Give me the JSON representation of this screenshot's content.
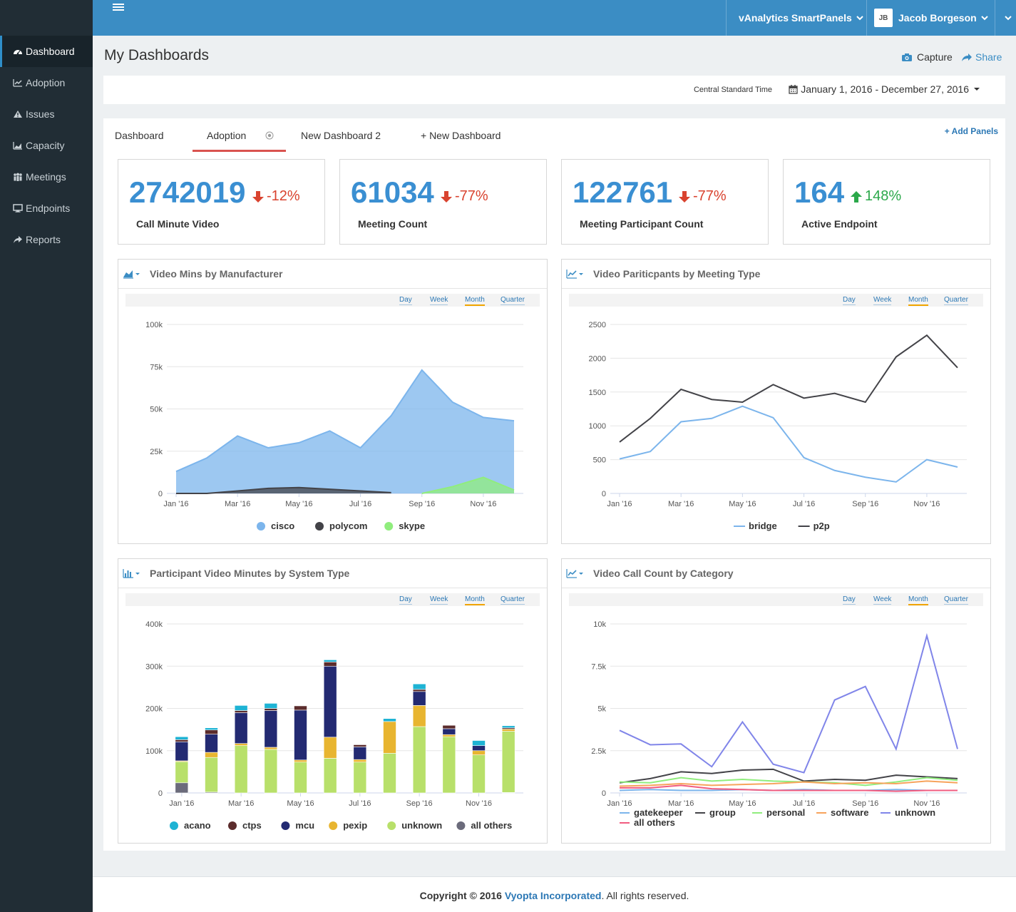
{
  "sidebar": {
    "items": [
      {
        "label": "Dashboard",
        "icon": "dashboard-icon",
        "active": true
      },
      {
        "label": "Adoption",
        "icon": "line-chart-icon"
      },
      {
        "label": "Issues",
        "icon": "warning-icon"
      },
      {
        "label": "Capacity",
        "icon": "area-chart-icon"
      },
      {
        "label": "Meetings",
        "icon": "users-icon"
      },
      {
        "label": "Endpoints",
        "icon": "desktop-icon"
      },
      {
        "label": "Reports",
        "icon": "share-icon"
      }
    ]
  },
  "header": {
    "product_menu": "vAnalytics SmartPanels",
    "user_initials": "JB",
    "user_name": "Jacob Borgeson",
    "brand_color": "#3b8dc4"
  },
  "page": {
    "title": "My Dashboards",
    "capture_label": "Capture",
    "share_label": "Share"
  },
  "datebar": {
    "timezone": "Central Standard Time",
    "range": "January 1, 2016 - December 27, 2016"
  },
  "tabs": [
    {
      "label": "Dashboard"
    },
    {
      "label": "Adoption",
      "active": true
    },
    {
      "label": "New Dashboard 2"
    },
    {
      "label": "+ New Dashboard"
    }
  ],
  "add_panels_label": "+ Add Panels",
  "kpis": [
    {
      "value": "2742019",
      "change": "-12%",
      "direction": "down",
      "label": "Call Minute Video"
    },
    {
      "value": "61034",
      "change": "-77%",
      "direction": "down",
      "label": "Meeting Count"
    },
    {
      "value": "122761",
      "change": "-77%",
      "direction": "down",
      "label": "Meeting Participant Count"
    },
    {
      "value": "164",
      "change": "148%",
      "direction": "up",
      "label": "Active Endpoint"
    }
  ],
  "periods": [
    "Day",
    "Week",
    "Month",
    "Quarter"
  ],
  "selected_period": "Month",
  "colors": {
    "kpi_number": "#3a8fd2",
    "down": "#d9432f",
    "up": "#2ba84a"
  },
  "chart_data": [
    {
      "type": "area",
      "title": "Video Mins by Manufacturer",
      "x": [
        "Jan '16",
        "Feb '16",
        "Mar '16",
        "Apr '16",
        "May '16",
        "Jun '16",
        "Jul '16",
        "Aug '16",
        "Sep '16",
        "Oct '16",
        "Nov '16",
        "Dec '16"
      ],
      "x_ticks": [
        "Jan '16",
        "Mar '16",
        "May '16",
        "Jul '16",
        "Sep '16",
        "Nov '16"
      ],
      "y_ticks": [
        "0",
        "25k",
        "50k",
        "75k",
        "100k"
      ],
      "ylim": [
        0,
        100000
      ],
      "series": [
        {
          "name": "cisco",
          "color": "#7cb5ec",
          "values": [
            13000,
            21000,
            34000,
            27000,
            30000,
            37000,
            27000,
            46000,
            73000,
            54000,
            45000,
            43000
          ]
        },
        {
          "name": "polycom",
          "color": "#434348",
          "values": [
            0,
            0,
            1500,
            3000,
            3500,
            2500,
            1500,
            500,
            null,
            null,
            null,
            null
          ]
        },
        {
          "name": "skype",
          "color": "#90ed7d",
          "values": [
            null,
            null,
            null,
            null,
            null,
            null,
            null,
            null,
            0,
            4000,
            9500,
            2000
          ]
        }
      ],
      "legend": "bottom"
    },
    {
      "type": "line",
      "title": "Video Pariticpants by Meeting Type",
      "x": [
        "Jan '16",
        "Feb '16",
        "Mar '16",
        "Apr '16",
        "May '16",
        "Jun '16",
        "Jul '16",
        "Aug '16",
        "Sep '16",
        "Oct '16",
        "Nov '16",
        "Dec '16"
      ],
      "x_ticks": [
        "Jan '16",
        "Mar '16",
        "May '16",
        "Jul '16",
        "Sep '16",
        "Nov '16"
      ],
      "y_ticks": [
        "0",
        "500",
        "1000",
        "1500",
        "2000",
        "2500"
      ],
      "ylim": [
        0,
        2500
      ],
      "series": [
        {
          "name": "bridge",
          "color": "#7cb5ec",
          "values": [
            510,
            620,
            1060,
            1110,
            1290,
            1120,
            530,
            340,
            240,
            170,
            500,
            390
          ]
        },
        {
          "name": "p2p",
          "color": "#434348",
          "values": [
            760,
            1110,
            1540,
            1390,
            1350,
            1610,
            1410,
            1480,
            1350,
            2020,
            2340,
            1860
          ]
        }
      ],
      "legend": "bottom"
    },
    {
      "type": "bar",
      "stacked": true,
      "title": "Participant Video Minutes by System Type",
      "x": [
        "Jan '16",
        "Feb '16",
        "Mar '16",
        "Apr '16",
        "May '16",
        "Jun '16",
        "Jul '16",
        "Aug '16",
        "Sep '16",
        "Oct '16",
        "Nov '16",
        "Dec '16"
      ],
      "x_ticks": [
        "Jan '16",
        "Mar '16",
        "May '16",
        "Jul '16",
        "Sep '16",
        "Nov '16"
      ],
      "y_ticks": [
        "0",
        "100k",
        "200k",
        "300k",
        "400k"
      ],
      "ylim": [
        0,
        400000
      ],
      "series": [
        {
          "name": "all others",
          "color": "#6b6b7b",
          "values": [
            24000,
            2000,
            0,
            0,
            0,
            0,
            0,
            0,
            0,
            0,
            0,
            1000
          ]
        },
        {
          "name": "unknown",
          "color": "#b8e06a",
          "values": [
            50000,
            82000,
            112000,
            103000,
            73000,
            82000,
            73000,
            94000,
            157000,
            133000,
            90000,
            145000
          ]
        },
        {
          "name": "pexip",
          "color": "#e8b530",
          "values": [
            2000,
            12000,
            5000,
            5000,
            5000,
            50000,
            6000,
            75000,
            50000,
            5000,
            10000,
            5000
          ]
        },
        {
          "name": "mcu",
          "color": "#232a72",
          "values": [
            45000,
            43000,
            73000,
            87000,
            118000,
            168000,
            30000,
            0,
            33000,
            14000,
            12000,
            0
          ]
        },
        {
          "name": "ctps",
          "color": "#5b2c2c",
          "values": [
            5000,
            10000,
            5000,
            5000,
            10000,
            10000,
            5000,
            0,
            5000,
            8000,
            0,
            3000
          ]
        },
        {
          "name": "acano",
          "color": "#1eb3d4",
          "values": [
            7000,
            5000,
            12000,
            12000,
            0,
            5000,
            0,
            7000,
            13000,
            0,
            12000,
            5000
          ]
        }
      ],
      "legend_order": [
        "acano",
        "ctps",
        "mcu",
        "pexip",
        "unknown",
        "all others"
      ],
      "legend": "bottom"
    },
    {
      "type": "line",
      "title": "Video Call Count by Category",
      "x": [
        "Jan '16",
        "Feb '16",
        "Mar '16",
        "Apr '16",
        "May '16",
        "Jun '16",
        "Jul '16",
        "Aug '16",
        "Sep '16",
        "Oct '16",
        "Nov '16",
        "Dec '16"
      ],
      "x_ticks": [
        "Jan '16",
        "Mar '16",
        "May '16",
        "Jul '16",
        "Sep '16",
        "Nov '16"
      ],
      "y_ticks": [
        "0",
        "2.5k",
        "5k",
        "7.5k",
        "10k"
      ],
      "ylim": [
        0,
        10000
      ],
      "series": [
        {
          "name": "gatekeeper",
          "color": "#7cb5ec",
          "values": [
            150,
            200,
            150,
            150,
            200,
            150,
            200,
            150,
            150,
            200,
            150,
            150
          ]
        },
        {
          "name": "group",
          "color": "#434348",
          "values": [
            600,
            850,
            1250,
            1150,
            1350,
            1400,
            700,
            800,
            750,
            1050,
            950,
            850
          ]
        },
        {
          "name": "personal",
          "color": "#90ed7d",
          "values": [
            650,
            600,
            900,
            700,
            800,
            700,
            650,
            600,
            450,
            650,
            900,
            750
          ]
        },
        {
          "name": "software",
          "color": "#f7a35c",
          "values": [
            400,
            450,
            550,
            450,
            500,
            550,
            650,
            550,
            600,
            550,
            700,
            600
          ]
        },
        {
          "name": "unknown",
          "color": "#8085e9",
          "values": [
            3700,
            2850,
            2900,
            1550,
            4200,
            1700,
            1200,
            5500,
            6300,
            2600,
            9300,
            2600
          ]
        },
        {
          "name": "all others",
          "color": "#f15c80",
          "values": [
            300,
            300,
            450,
            250,
            200,
            150,
            150,
            150,
            150,
            100,
            150,
            150
          ]
        }
      ],
      "legend": "bottom"
    }
  ],
  "footer": {
    "prefix": "Copyright © 2016",
    "company": "Vyopta Incorporated",
    "suffix": ". All rights reserved."
  }
}
